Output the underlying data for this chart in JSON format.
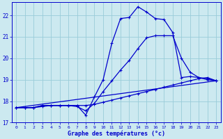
{
  "title": "Graphe des températures (°c)",
  "bg_color": "#cce9f0",
  "grid_color": "#99ccd9",
  "line_color": "#0000cc",
  "spine_color": "#0000cc",
  "xlim": [
    -0.5,
    23.5
  ],
  "ylim": [
    17.0,
    22.6
  ],
  "xtick_labels": [
    "0",
    "1",
    "2",
    "3",
    "4",
    "5",
    "6",
    "7",
    "8",
    "9",
    "10",
    "11",
    "12",
    "13",
    "14",
    "15",
    "16",
    "17",
    "18",
    "19",
    "20",
    "21",
    "22",
    "23"
  ],
  "ytick_labels": [
    "17",
    "18",
    "19",
    "20",
    "21",
    "22"
  ],
  "ytick_vals": [
    17,
    18,
    19,
    20,
    21,
    22
  ],
  "series1_x": [
    0,
    1,
    2,
    3,
    4,
    5,
    6,
    7,
    8,
    9,
    10,
    11,
    12,
    13,
    14,
    15,
    16,
    17,
    18,
    19,
    20,
    21,
    22,
    23
  ],
  "series1_y": [
    17.7,
    17.7,
    17.7,
    17.8,
    17.8,
    17.8,
    17.8,
    17.8,
    17.35,
    18.2,
    19.0,
    20.7,
    21.85,
    21.9,
    22.4,
    22.15,
    21.85,
    21.8,
    21.2,
    19.1,
    19.15,
    19.1,
    19.05,
    18.95
  ],
  "series2_x": [
    0,
    1,
    2,
    3,
    4,
    5,
    6,
    7,
    8,
    9,
    10,
    11,
    12,
    13,
    14,
    15,
    16,
    17,
    18,
    19,
    20,
    21,
    22,
    23
  ],
  "series2_y": [
    17.7,
    17.7,
    17.7,
    17.8,
    17.8,
    17.8,
    17.8,
    17.75,
    17.55,
    17.9,
    18.45,
    18.95,
    19.45,
    19.9,
    20.45,
    20.95,
    21.05,
    21.05,
    21.05,
    20.0,
    19.35,
    19.1,
    19.0,
    18.95
  ],
  "series3_x": [
    0,
    1,
    2,
    3,
    4,
    5,
    6,
    7,
    8,
    9,
    10,
    11,
    12,
    13,
    14,
    15,
    16,
    17,
    18,
    19,
    20,
    21,
    22,
    23
  ],
  "series3_y": [
    17.7,
    17.7,
    17.7,
    17.75,
    17.8,
    17.8,
    17.8,
    17.8,
    17.8,
    17.85,
    17.95,
    18.05,
    18.15,
    18.25,
    18.35,
    18.45,
    18.55,
    18.65,
    18.75,
    18.85,
    18.95,
    19.05,
    19.1,
    18.95
  ],
  "series4_x": [
    0,
    23
  ],
  "series4_y": [
    17.7,
    18.95
  ]
}
